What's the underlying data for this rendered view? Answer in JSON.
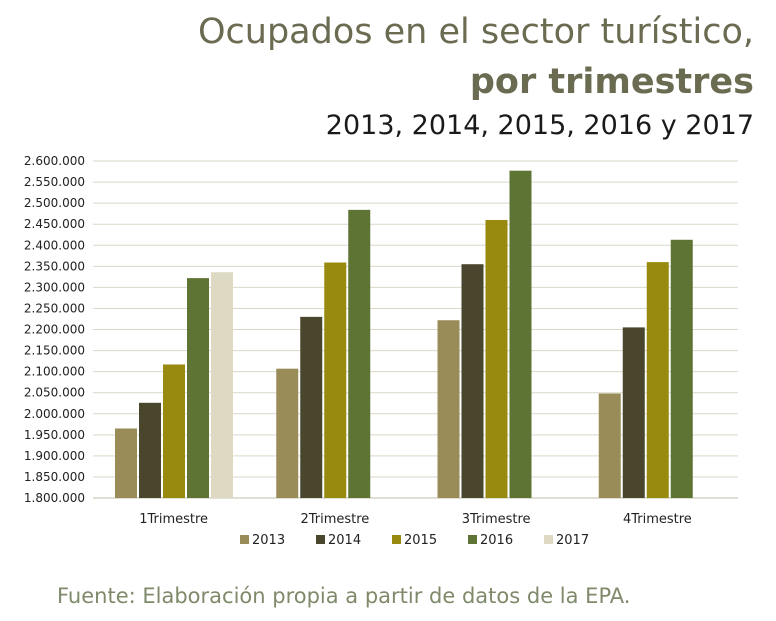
{
  "header": {
    "title_line1": "Ocupados en el sector turístico,",
    "title_line2": "por trimestres",
    "title_line3": "2013, 2014, 2015, 2016 y 2017"
  },
  "source": "Fuente: Elaboración propia a partir de datos de la EPA.",
  "chart_data": {
    "type": "bar",
    "title": "Ocupados en el sector turístico, por trimestres",
    "subtitle": "2013, 2014, 2015, 2016 y 2017",
    "xlabel": "",
    "ylabel": "",
    "grid": true,
    "legend_position": "bottom",
    "categories": [
      "1Trimestre",
      "2Trimestre",
      "3Trimestre",
      "4Trimestre"
    ],
    "ylim": [
      1800000,
      2600000
    ],
    "yticks": [
      "1.800.000",
      "1.850.000",
      "1.900.000",
      "1.950.000",
      "2.000.000",
      "2.050.000",
      "2.100.000",
      "2.150.000",
      "2.200.000",
      "2.250.000",
      "2.300.000",
      "2.350.000",
      "2.400.000",
      "2.450.000",
      "2.500.000",
      "2.550.000",
      "2.600.000"
    ],
    "series": [
      {
        "name": "2013",
        "color": "#9a8c58",
        "values": [
          1965000,
          2107000,
          2222000,
          2048000
        ]
      },
      {
        "name": "2014",
        "color": "#4a452d",
        "values": [
          2026000,
          2230000,
          2355000,
          2205000
        ]
      },
      {
        "name": "2015",
        "color": "#978a0e",
        "values": [
          2117000,
          2359000,
          2460000,
          2360000
        ]
      },
      {
        "name": "2016",
        "color": "#5e7434",
        "values": [
          2322000,
          2484000,
          2577000,
          2413000
        ]
      },
      {
        "name": "2017",
        "color": "#ddd9c3",
        "values": [
          2336000,
          null,
          null,
          null
        ]
      }
    ]
  }
}
